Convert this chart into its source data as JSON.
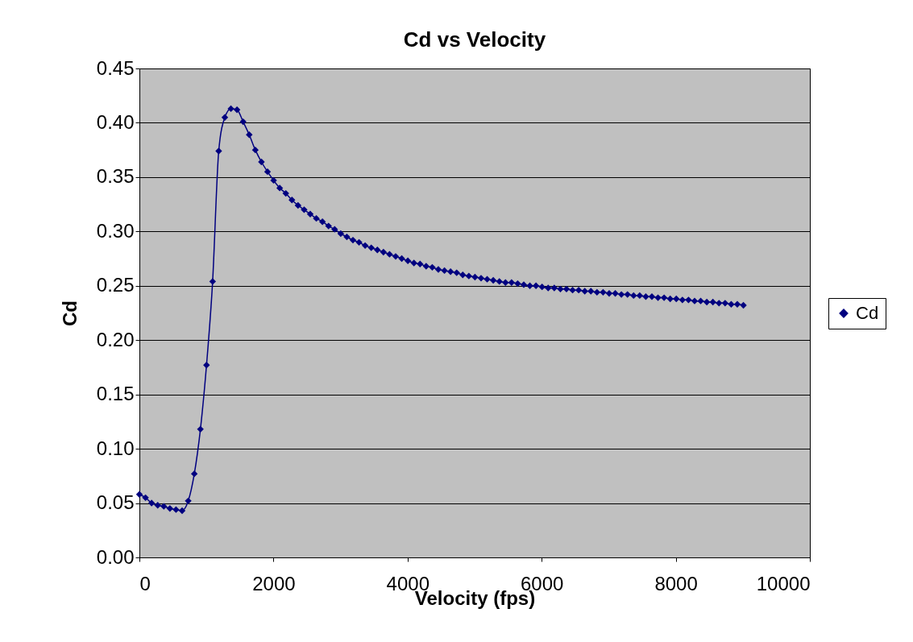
{
  "chart_data": {
    "type": "line",
    "title": "Cd vs Velocity",
    "xlabel": "Velocity (fps)",
    "ylabel": "Cd",
    "x": [
      0,
      91,
      182,
      273,
      364,
      455,
      546,
      637,
      728,
      819,
      910,
      1001,
      1092,
      1183,
      1274,
      1365,
      1456,
      1547,
      1638,
      1729,
      1820,
      1911,
      2002,
      2093,
      2184,
      2275,
      2366,
      2457,
      2548,
      2639,
      2730,
      2821,
      2912,
      3003,
      3094,
      3185,
      3276,
      3367,
      3458,
      3549,
      3640,
      3731,
      3822,
      3913,
      4004,
      4095,
      4186,
      4277,
      4368,
      4459,
      4550,
      4641,
      4732,
      4823,
      4914,
      5005,
      5096,
      5187,
      5278,
      5369,
      5460,
      5551,
      5642,
      5733,
      5824,
      5915,
      6006,
      6097,
      6188,
      6279,
      6370,
      6461,
      6552,
      6643,
      6734,
      6825,
      6916,
      7007,
      7098,
      7189,
      7280,
      7371,
      7462,
      7553,
      7644,
      7735,
      7826,
      7917,
      8008,
      8099,
      8190,
      8281,
      8372,
      8463,
      8554,
      8645,
      8736,
      8827,
      8918,
      9009
    ],
    "series": [
      {
        "name": "Cd",
        "color": "#000080",
        "values": [
          0.058,
          0.055,
          0.05,
          0.048,
          0.047,
          0.045,
          0.044,
          0.043,
          0.052,
          0.077,
          0.118,
          0.177,
          0.254,
          0.374,
          0.405,
          0.413,
          0.412,
          0.401,
          0.389,
          0.375,
          0.364,
          0.355,
          0.347,
          0.34,
          0.335,
          0.329,
          0.324,
          0.32,
          0.316,
          0.312,
          0.309,
          0.305,
          0.302,
          0.298,
          0.295,
          0.292,
          0.29,
          0.287,
          0.285,
          0.283,
          0.281,
          0.279,
          0.277,
          0.275,
          0.273,
          0.271,
          0.27,
          0.268,
          0.267,
          0.265,
          0.264,
          0.263,
          0.262,
          0.26,
          0.259,
          0.258,
          0.257,
          0.256,
          0.255,
          0.254,
          0.253,
          0.253,
          0.252,
          0.251,
          0.25,
          0.25,
          0.249,
          0.248,
          0.248,
          0.247,
          0.247,
          0.246,
          0.246,
          0.245,
          0.245,
          0.244,
          0.244,
          0.243,
          0.243,
          0.242,
          0.242,
          0.241,
          0.241,
          0.24,
          0.24,
          0.239,
          0.239,
          0.238,
          0.238,
          0.237,
          0.237,
          0.236,
          0.236,
          0.235,
          0.235,
          0.234,
          0.234,
          0.233,
          0.233,
          0.232
        ]
      }
    ],
    "xlim": [
      0,
      10000
    ],
    "xticks": [
      0,
      2000,
      4000,
      6000,
      8000,
      10000
    ],
    "ylim": [
      0,
      0.45
    ],
    "yticks": [
      {
        "value": 0,
        "label": "0.00"
      },
      0.05,
      {
        "value": 0.1,
        "label": "0.10"
      },
      0.15,
      {
        "value": 0.2,
        "label": "0.20"
      },
      0.25,
      {
        "value": 0.3,
        "label": "0.30"
      },
      0.35,
      {
        "value": 0.4,
        "label": "0.40"
      },
      0.45
    ],
    "grid": "y",
    "legend": "right",
    "marker": "diamond",
    "line_style": "solid"
  }
}
